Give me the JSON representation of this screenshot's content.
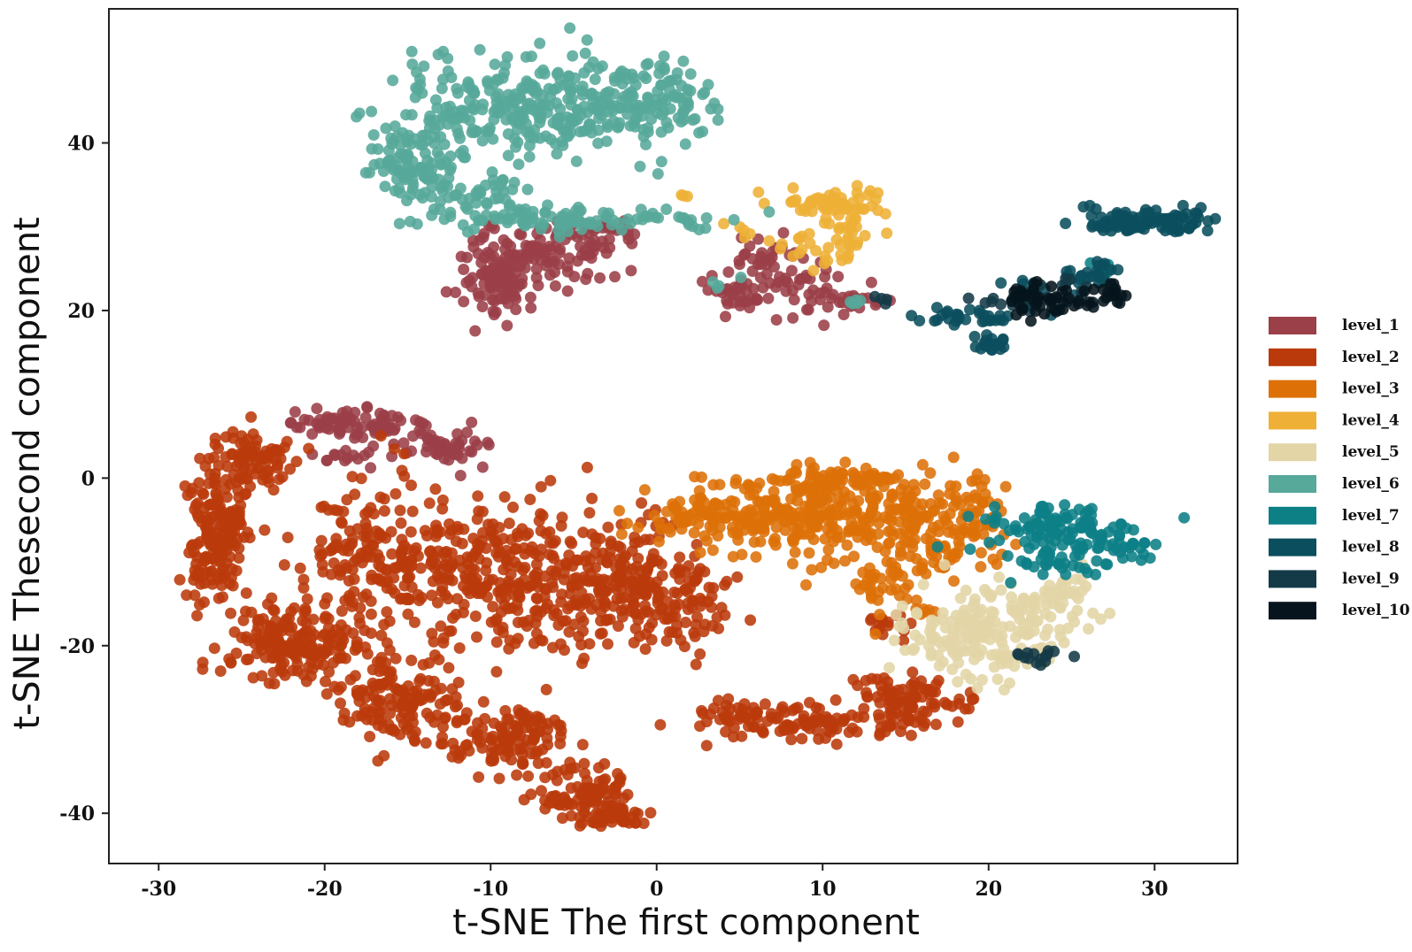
{
  "chart_data": {
    "type": "scatter",
    "title": "",
    "xlabel": "t-SNE The first component",
    "ylabel": "t-SNE Thesecond component",
    "xlim": [
      -33,
      35
    ],
    "ylim": [
      -46,
      56
    ],
    "xticks": [
      -30,
      -20,
      -10,
      0,
      10,
      20,
      30
    ],
    "yticks": [
      -40,
      -20,
      0,
      20,
      40
    ],
    "grid": false,
    "legend_position": "right",
    "series": [
      {
        "name": "level_1",
        "color": "#9b3f48",
        "clusters": [
          {
            "cx": -9.5,
            "cy": 24.5,
            "sx": 1.2,
            "sy": 2.5,
            "n": 110
          },
          {
            "cx": -6.5,
            "cy": 26.5,
            "sx": 1.8,
            "sy": 2.0,
            "n": 70
          },
          {
            "cx": -3.5,
            "cy": 29.0,
            "sx": 1.5,
            "sy": 1.0,
            "n": 40
          },
          {
            "cx": 7.5,
            "cy": 22.5,
            "sx": 2.0,
            "sy": 2.0,
            "n": 60
          },
          {
            "cx": 4.5,
            "cy": 22.0,
            "sx": 1.0,
            "sy": 1.0,
            "n": 20
          },
          {
            "cx": 11.5,
            "cy": 21.0,
            "sx": 1.2,
            "sy": 0.5,
            "n": 15
          },
          {
            "cx": 6.5,
            "cy": 27.0,
            "sx": 1.0,
            "sy": 1.2,
            "n": 20
          },
          {
            "cx": -18.5,
            "cy": 6.5,
            "sx": 2.0,
            "sy": 0.8,
            "n": 80
          },
          {
            "cx": -12.5,
            "cy": 4.0,
            "sx": 1.5,
            "sy": 1.2,
            "n": 50
          },
          {
            "cx": -19.0,
            "cy": 2.5,
            "sx": 1.2,
            "sy": 0.4,
            "n": 15
          }
        ]
      },
      {
        "name": "level_2",
        "color": "#bb3a0b",
        "clusters": [
          {
            "cx": -26.5,
            "cy": -6.0,
            "sx": 0.9,
            "sy": 4.0,
            "n": 180
          },
          {
            "cx": -24.5,
            "cy": 2.0,
            "sx": 1.2,
            "sy": 1.8,
            "n": 80
          },
          {
            "cx": -22.0,
            "cy": -20.0,
            "sx": 2.0,
            "sy": 2.5,
            "n": 160
          },
          {
            "cx": -15.5,
            "cy": -26.5,
            "sx": 2.0,
            "sy": 2.5,
            "n": 140
          },
          {
            "cx": -8.5,
            "cy": -31.5,
            "sx": 2.0,
            "sy": 2.0,
            "n": 120
          },
          {
            "cx": -4.5,
            "cy": -37.5,
            "sx": 1.5,
            "sy": 1.5,
            "n": 90
          },
          {
            "cx": -2.5,
            "cy": -40.5,
            "sx": 0.8,
            "sy": 0.5,
            "n": 40
          },
          {
            "cx": -16.0,
            "cy": -10.0,
            "sx": 3.5,
            "sy": 4.5,
            "n": 260
          },
          {
            "cx": -8.0,
            "cy": -12.0,
            "sx": 3.0,
            "sy": 4.0,
            "n": 220
          },
          {
            "cx": -2.0,
            "cy": -13.0,
            "sx": 2.5,
            "sy": 3.5,
            "n": 180
          },
          {
            "cx": 2.0,
            "cy": -15.0,
            "sx": 1.5,
            "sy": 2.5,
            "n": 60
          },
          {
            "cx": 9.0,
            "cy": -29.0,
            "sx": 3.0,
            "sy": 1.2,
            "n": 100
          },
          {
            "cx": 15.5,
            "cy": -26.5,
            "sx": 2.0,
            "sy": 1.5,
            "n": 90
          },
          {
            "cx": 4.5,
            "cy": -28.0,
            "sx": 1.2,
            "sy": 1.0,
            "n": 25
          },
          {
            "cx": 14.0,
            "cy": -17.5,
            "sx": 0.8,
            "sy": 1.0,
            "n": 15
          }
        ]
      },
      {
        "name": "level_3",
        "color": "#dd7108",
        "clusters": [
          {
            "cx": 4.0,
            "cy": -4.5,
            "sx": 2.5,
            "sy": 2.0,
            "n": 120
          },
          {
            "cx": 10.0,
            "cy": -4.0,
            "sx": 3.0,
            "sy": 2.5,
            "n": 180
          },
          {
            "cx": 16.0,
            "cy": -6.0,
            "sx": 2.5,
            "sy": 3.0,
            "n": 140
          },
          {
            "cx": 12.0,
            "cy": 0.0,
            "sx": 3.0,
            "sy": 0.6,
            "n": 60
          },
          {
            "cx": 14.5,
            "cy": -13.0,
            "sx": 1.5,
            "sy": 2.0,
            "n": 50
          },
          {
            "cx": 19.0,
            "cy": -5.0,
            "sx": 1.0,
            "sy": 1.5,
            "n": 30
          }
        ]
      },
      {
        "name": "level_4",
        "color": "#eeb037",
        "clusters": [
          {
            "cx": 10.5,
            "cy": 33.0,
            "sx": 1.8,
            "sy": 0.8,
            "n": 50
          },
          {
            "cx": 11.5,
            "cy": 29.5,
            "sx": 1.0,
            "sy": 2.0,
            "n": 40
          },
          {
            "cx": 8.5,
            "cy": 28.0,
            "sx": 0.8,
            "sy": 0.7,
            "n": 12
          },
          {
            "cx": 1.5,
            "cy": 33.5,
            "sx": 0.3,
            "sy": 0.3,
            "n": 3
          },
          {
            "cx": 4.5,
            "cy": 29.5,
            "sx": 0.5,
            "sy": 0.5,
            "n": 5
          }
        ]
      },
      {
        "name": "level_5",
        "color": "#e3d5a6",
        "clusters": [
          {
            "cx": 18.0,
            "cy": -19.5,
            "sx": 2.0,
            "sy": 2.5,
            "n": 100
          },
          {
            "cx": 21.5,
            "cy": -17.0,
            "sx": 2.0,
            "sy": 2.5,
            "n": 90
          },
          {
            "cx": 24.5,
            "cy": -14.5,
            "sx": 1.0,
            "sy": 1.5,
            "n": 30
          }
        ]
      },
      {
        "name": "level_6",
        "color": "#57a99a",
        "clusters": [
          {
            "cx": -14.5,
            "cy": 37.5,
            "sx": 1.5,
            "sy": 2.5,
            "n": 110
          },
          {
            "cx": -10.0,
            "cy": 44.5,
            "sx": 3.0,
            "sy": 3.0,
            "n": 180
          },
          {
            "cx": -3.5,
            "cy": 44.0,
            "sx": 3.0,
            "sy": 3.0,
            "n": 150
          },
          {
            "cx": 0.0,
            "cy": 45.0,
            "sx": 1.5,
            "sy": 1.8,
            "n": 60
          },
          {
            "cx": -6.0,
            "cy": 31.0,
            "sx": 4.0,
            "sy": 0.8,
            "n": 100
          },
          {
            "cx": -10.5,
            "cy": 34.0,
            "sx": 1.5,
            "sy": 1.0,
            "n": 30
          },
          {
            "cx": 3.0,
            "cy": 30.5,
            "sx": 0.8,
            "sy": 0.6,
            "n": 8
          },
          {
            "cx": 12.0,
            "cy": 21.0,
            "sx": 0.6,
            "sy": 0.5,
            "n": 5
          },
          {
            "cx": 4.5,
            "cy": 23.5,
            "sx": 0.5,
            "sy": 0.4,
            "n": 4
          }
        ]
      },
      {
        "name": "level_7",
        "color": "#0d8086",
        "clusters": [
          {
            "cx": 24.0,
            "cy": -6.0,
            "sx": 2.5,
            "sy": 1.5,
            "n": 100
          },
          {
            "cx": 24.5,
            "cy": -10.0,
            "sx": 1.5,
            "sy": 1.2,
            "n": 40
          },
          {
            "cx": 28.5,
            "cy": -8.5,
            "sx": 1.0,
            "sy": 1.0,
            "n": 20
          },
          {
            "cx": 27.0,
            "cy": 24.5,
            "sx": 0.5,
            "sy": 0.8,
            "n": 8
          }
        ]
      },
      {
        "name": "level_8",
        "color": "#0b4e5d",
        "clusters": [
          {
            "cx": 29.5,
            "cy": 30.5,
            "sx": 2.0,
            "sy": 0.7,
            "n": 110
          },
          {
            "cx": 18.5,
            "cy": 19.0,
            "sx": 1.5,
            "sy": 0.5,
            "n": 30
          },
          {
            "cx": 20.0,
            "cy": 16.0,
            "sx": 0.6,
            "sy": 0.7,
            "n": 20
          },
          {
            "cx": 22.5,
            "cy": 22.0,
            "sx": 1.0,
            "sy": 1.0,
            "n": 20
          },
          {
            "cx": 26.0,
            "cy": 24.0,
            "sx": 1.0,
            "sy": 1.0,
            "n": 25
          }
        ]
      },
      {
        "name": "level_9",
        "color": "#143a47",
        "clusters": [
          {
            "cx": 21.5,
            "cy": 21.0,
            "sx": 1.0,
            "sy": 0.8,
            "n": 15
          },
          {
            "cx": 23.0,
            "cy": -21.5,
            "sx": 1.0,
            "sy": 0.8,
            "n": 15
          },
          {
            "cx": 13.5,
            "cy": 21.0,
            "sx": 0.4,
            "sy": 0.5,
            "n": 4
          },
          {
            "cx": 25.0,
            "cy": 22.5,
            "sx": 0.8,
            "sy": 0.8,
            "n": 10
          }
        ]
      },
      {
        "name": "level_10",
        "color": "#06151d",
        "clusters": [
          {
            "cx": 23.0,
            "cy": 21.0,
            "sx": 1.2,
            "sy": 1.0,
            "n": 45
          },
          {
            "cx": 27.0,
            "cy": 22.0,
            "sx": 0.8,
            "sy": 1.0,
            "n": 20
          }
        ]
      }
    ]
  }
}
